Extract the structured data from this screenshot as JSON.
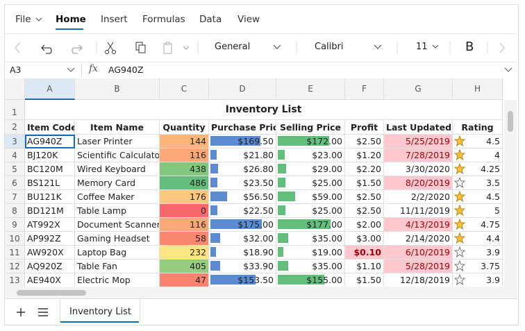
{
  "menu": [
    "File",
    "Home",
    "Insert",
    "Formulas",
    "Data",
    "View"
  ],
  "toolbar": {
    "number_format": "General",
    "font": "Calibri",
    "font_size": "11",
    "bold": "B"
  },
  "formula_bar": {
    "cell": "A3",
    "fx": "fx",
    "content": "AG940Z"
  },
  "sheet": {
    "columns": [
      "A",
      "B",
      "C",
      "D",
      "E",
      "F",
      "G",
      "H"
    ],
    "row_numbers": [
      1,
      2,
      3,
      4,
      5,
      6,
      7,
      8,
      9,
      10,
      11,
      12,
      13
    ],
    "title": "Inventory List",
    "headers": [
      "Item Code",
      "Item Name",
      "Quantity",
      "Purchase Price",
      "Selling Price",
      "Profit",
      "Last Updated",
      "Rating"
    ],
    "rows": [
      [
        "AG940Z",
        "Laser Printer",
        144,
        "$169.50",
        "$172.00",
        "$2.50",
        "5/25/2019",
        4.5
      ],
      [
        "BJ120K",
        "Scientific Calculator",
        116,
        "$21.80",
        "$23.00",
        "$1.20",
        "7/28/2019",
        4
      ],
      [
        "BC120M",
        "Wired Keyboard",
        438,
        "$26.80",
        "$29.00",
        "$2.20",
        "3/30/2020",
        4.25
      ],
      [
        "BS121L",
        "Memory Card",
        486,
        "$23.50",
        "$25.00",
        "$1.50",
        "8/20/2019",
        3.5
      ],
      [
        "BU121K",
        "Coffee Maker",
        176,
        "$56.50",
        "$59.00",
        "$2.50",
        "2/2/2020",
        4.5
      ],
      [
        "BD121M",
        "Table Lamp",
        0,
        "$22.50",
        "$25.00",
        "$2.50",
        "11/11/2019",
        5
      ],
      [
        "AT992X",
        "Document Scanner",
        116,
        "$175.00",
        "$177.00",
        "$2.00",
        "4/13/2019",
        4.75
      ],
      [
        "AP992Z",
        "Gaming Headset",
        58,
        "$32.00",
        "$35.00",
        "$3.00",
        "2/14/2020",
        4.4
      ],
      [
        "AW920X",
        "Laptop Bag",
        232,
        "$18.90",
        "$19.00",
        "$0.10",
        "6/10/2019",
        3.9
      ],
      [
        "AQ920Z",
        "Table Fan",
        405,
        "$33.90",
        "$35.00",
        "$1.10",
        "5/28/2019",
        3.75
      ],
      [
        "AE940X",
        "Electric Mop",
        47,
        "$153.50",
        "$155.00",
        "$1.50",
        "12/18/2019",
        3.9
      ]
    ],
    "highlight": [
      [
        6
      ],
      [
        6
      ],
      [],
      [
        6
      ],
      [],
      [],
      [
        6
      ],
      [],
      [
        5,
        6
      ],
      [
        6
      ],
      []
    ]
  },
  "tabs": [
    "Inventory List"
  ]
}
